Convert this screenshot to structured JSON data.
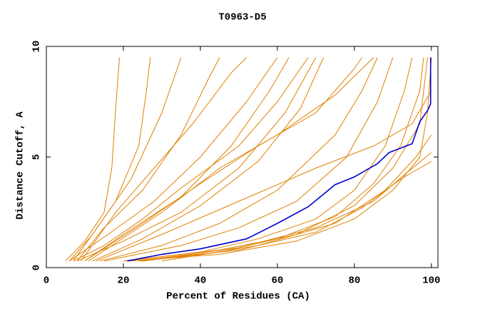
{
  "chart_data": {
    "type": "line",
    "title": "T0963-D5",
    "x_label": "Percent of Residues (CA)",
    "y_label": "Distance Cutoff, A",
    "xlim": [
      0,
      101.7
    ],
    "ylim": [
      0,
      10
    ],
    "xticks": [
      0,
      20,
      40,
      60,
      80,
      100
    ],
    "yticks": [
      0,
      5,
      10
    ],
    "series": [
      {
        "color": "#e08000",
        "x": [
          5,
          10,
          15,
          17,
          18,
          19
        ],
        "values": [
          0.3,
          1.2,
          2.5,
          4.5,
          7.2,
          9.5
        ]
      },
      {
        "color": "#e08000",
        "x": [
          6,
          12,
          18,
          24,
          26,
          27
        ],
        "values": [
          0.3,
          1.5,
          3.0,
          5.5,
          8.0,
          9.5
        ]
      },
      {
        "color": "#e08000",
        "x": [
          7,
          14,
          22,
          30,
          34,
          35
        ],
        "values": [
          0.3,
          2.0,
          4.0,
          7.0,
          9.0,
          9.5
        ]
      },
      {
        "color": "#e08000",
        "x": [
          8,
          15,
          25,
          35,
          42,
          45
        ],
        "values": [
          0.3,
          1.8,
          3.5,
          6.0,
          8.5,
          9.5
        ]
      },
      {
        "color": "#e08000",
        "x": [
          9,
          18,
          28,
          38,
          48,
          52
        ],
        "values": [
          0.3,
          2.5,
          4.5,
          6.5,
          8.8,
          9.5
        ]
      },
      {
        "color": "#e08000",
        "x": [
          6,
          16,
          28,
          40,
          52,
          60
        ],
        "values": [
          0.3,
          1.5,
          3.0,
          5.0,
          7.5,
          9.5
        ]
      },
      {
        "color": "#e08000",
        "x": [
          10,
          20,
          35,
          48,
          58,
          63
        ],
        "values": [
          0.3,
          1.5,
          3.2,
          5.5,
          8.0,
          9.5
        ]
      },
      {
        "color": "#e08000",
        "x": [
          8,
          20,
          35,
          50,
          62,
          70
        ],
        "values": [
          0.3,
          1.2,
          2.5,
          4.5,
          7.0,
          9.5
        ]
      },
      {
        "color": "#e08000",
        "x": [
          12,
          25,
          40,
          55,
          66,
          72
        ],
        "values": [
          0.3,
          1.3,
          2.8,
          4.8,
          7.2,
          9.5
        ]
      },
      {
        "color": "#e08000",
        "x": [
          14,
          30,
          45,
          60,
          75,
          82,
          86
        ],
        "values": [
          0.3,
          1.0,
          2.0,
          3.5,
          6.0,
          8.0,
          9.5
        ]
      },
      {
        "color": "#e08000",
        "x": [
          15,
          35,
          50,
          65,
          78,
          86,
          90
        ],
        "values": [
          0.3,
          1.0,
          1.8,
          3.0,
          5.0,
          7.5,
          9.5
        ]
      },
      {
        "color": "#e08000",
        "x": [
          20,
          40,
          55,
          70,
          80,
          88,
          93,
          95
        ],
        "values": [
          0.3,
          0.7,
          1.3,
          2.2,
          3.5,
          5.5,
          8.0,
          9.5
        ]
      },
      {
        "color": "#e08000",
        "x": [
          20,
          45,
          60,
          75,
          85,
          92,
          97,
          98
        ],
        "values": [
          0.3,
          0.8,
          1.3,
          2.3,
          3.8,
          5.5,
          8.0,
          9.5
        ]
      },
      {
        "color": "#e08000",
        "x": [
          22,
          45,
          65,
          80,
          90,
          97,
          99
        ],
        "values": [
          0.3,
          0.7,
          1.5,
          2.8,
          4.5,
          6.5,
          9.5
        ]
      },
      {
        "color": "#e08000",
        "x": [
          21,
          45,
          65,
          80,
          90,
          97,
          99,
          100
        ],
        "values": [
          0.3,
          0.6,
          1.2,
          2.2,
          3.5,
          5.0,
          7.0,
          9.5
        ]
      },
      {
        "color": "#e08000",
        "x": [
          24,
          50,
          70,
          85,
          93,
          100
        ],
        "values": [
          0.3,
          0.9,
          1.8,
          3.0,
          4.2,
          5.2
        ]
      },
      {
        "color": "#e08000",
        "x": [
          25,
          50,
          70,
          82,
          92,
          100
        ],
        "values": [
          0.3,
          0.8,
          1.6,
          2.7,
          4.0,
          4.8
        ]
      },
      {
        "color": "#e08000",
        "x": [
          13,
          30,
          50,
          70,
          85,
          95,
          100
        ],
        "values": [
          0.3,
          1.5,
          3.0,
          4.5,
          5.5,
          6.5,
          8.0
        ]
      },
      {
        "color": "#e08000",
        "x": [
          10,
          25,
          40,
          55,
          70,
          80,
          82
        ],
        "values": [
          0.3,
          2.0,
          3.8,
          5.5,
          7.0,
          9.0,
          9.5
        ]
      },
      {
        "color": "#e08000",
        "x": [
          7,
          15,
          25,
          35,
          50,
          60,
          68
        ],
        "values": [
          0.3,
          1.0,
          2.2,
          3.6,
          5.5,
          7.5,
          9.5
        ]
      },
      {
        "color": "#e08000",
        "x": [
          30,
          55,
          75,
          88,
          96,
          100
        ],
        "values": [
          0.3,
          1.0,
          2.0,
          3.5,
          5.0,
          6.0
        ]
      },
      {
        "color": "#e08000",
        "x": [
          11,
          30,
          45,
          60,
          75,
          85
        ],
        "values": [
          0.3,
          2.5,
          4.5,
          6.0,
          7.8,
          9.5
        ]
      },
      {
        "color": "#0000cc",
        "x": [
          21,
          30,
          40,
          52,
          60,
          68,
          75,
          80,
          86,
          89,
          95,
          97,
          99,
          99.8,
          99.8
        ],
        "values": [
          0.3,
          0.6,
          0.85,
          1.3,
          2.0,
          2.75,
          3.75,
          4.1,
          4.7,
          5.2,
          5.6,
          6.6,
          7.1,
          7.4,
          9.5
        ]
      }
    ]
  }
}
